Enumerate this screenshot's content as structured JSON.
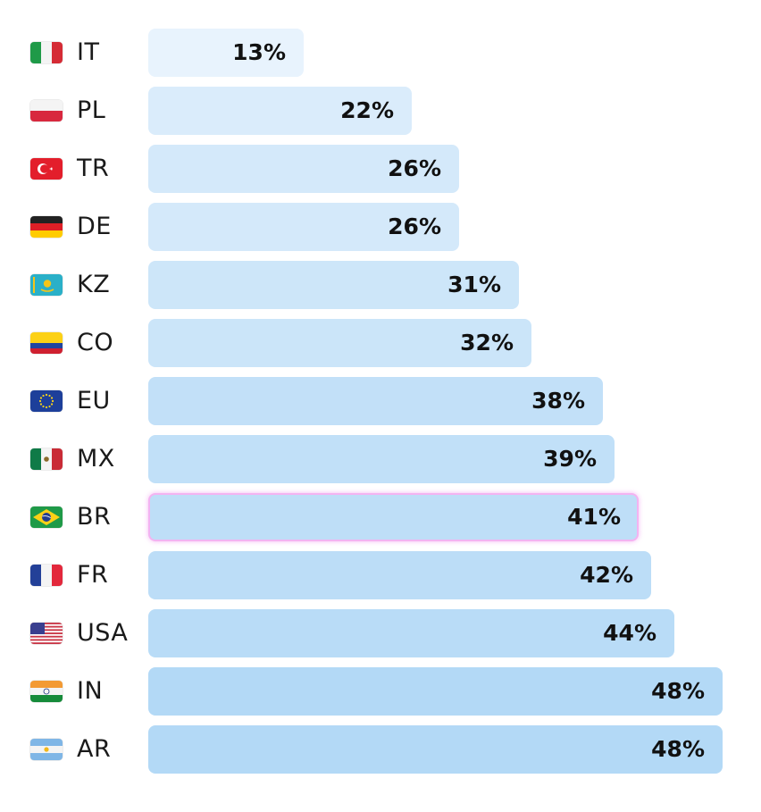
{
  "chart_data": {
    "type": "bar",
    "orientation": "horizontal",
    "title": "",
    "xlabel": "",
    "ylabel": "",
    "value_suffix": "%",
    "highlight": "BR",
    "categories": [
      "IT",
      "PL",
      "TR",
      "DE",
      "KZ",
      "CO",
      "EU",
      "MX",
      "BR",
      "FR",
      "USA",
      "IN",
      "AR"
    ],
    "values": [
      13,
      22,
      26,
      26,
      31,
      32,
      38,
      39,
      41,
      42,
      44,
      48,
      48
    ],
    "labels": [
      "13%",
      "22%",
      "26%",
      "26%",
      "31%",
      "32%",
      "38%",
      "39%",
      "41%",
      "42%",
      "44%",
      "48%",
      "48%"
    ],
    "flag_icons": [
      "italy-flag-icon",
      "poland-flag-icon",
      "turkey-flag-icon",
      "germany-flag-icon",
      "kazakhstan-flag-icon",
      "colombia-flag-icon",
      "eu-flag-icon",
      "mexico-flag-icon",
      "brazil-flag-icon",
      "france-flag-icon",
      "usa-flag-icon",
      "india-flag-icon",
      "argentina-flag-icon"
    ],
    "colors": {
      "bar_light": "#e8f3fd",
      "bar_dark": "#b3d9f6",
      "highlight_border": "#f3b3f1",
      "text": "#111111"
    },
    "grid": false,
    "legend": "none"
  }
}
